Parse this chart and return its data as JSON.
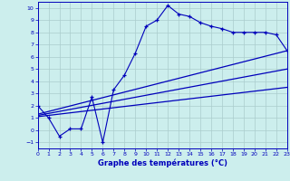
{
  "bg_color": "#cceeed",
  "line_color": "#0000bb",
  "grid_color": "#aacccc",
  "xlim": [
    0,
    23
  ],
  "ylim": [
    -1.5,
    10.5
  ],
  "xticks": [
    0,
    1,
    2,
    3,
    4,
    5,
    6,
    7,
    8,
    9,
    10,
    11,
    12,
    13,
    14,
    15,
    16,
    17,
    18,
    19,
    20,
    21,
    22,
    23
  ],
  "yticks": [
    -1,
    0,
    1,
    2,
    3,
    4,
    5,
    6,
    7,
    8,
    9,
    10
  ],
  "curve1_x": [
    0,
    1,
    2,
    3,
    4,
    5,
    6,
    7,
    8,
    9,
    10,
    11,
    12,
    13,
    14,
    15,
    16,
    17,
    18,
    19,
    20,
    21,
    22,
    23
  ],
  "curve1_y": [
    2.0,
    1.0,
    -0.5,
    0.1,
    0.1,
    2.7,
    -1.0,
    3.3,
    4.5,
    6.3,
    8.5,
    9.0,
    10.2,
    9.5,
    9.3,
    8.8,
    8.5,
    8.3,
    8.0,
    8.0,
    8.0,
    8.0,
    7.8,
    6.5
  ],
  "line1_x": [
    0,
    23
  ],
  "line1_y": [
    1.3,
    6.5
  ],
  "line2_x": [
    0,
    23
  ],
  "line2_y": [
    1.2,
    5.0
  ],
  "line3_x": [
    0,
    23
  ],
  "line3_y": [
    1.1,
    3.5
  ],
  "xlabel": "Graphe des températures (°C)"
}
